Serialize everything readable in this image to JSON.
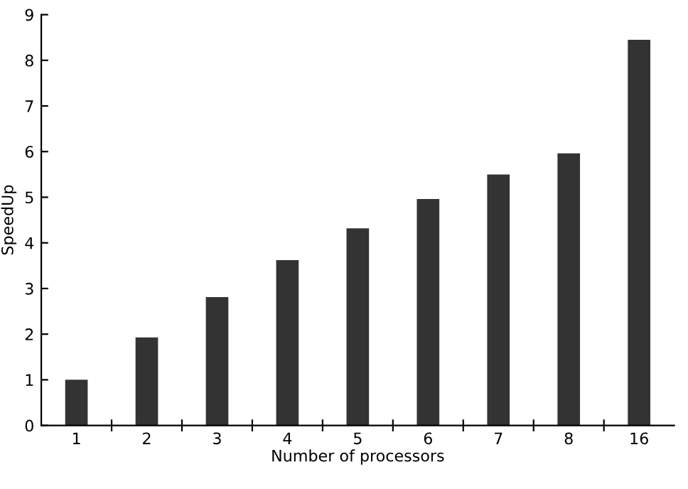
{
  "chart_data": {
    "type": "bar",
    "xlabel": "Number of processors",
    "ylabel": "SpeedUp",
    "categories": [
      "1",
      "2",
      "3",
      "4",
      "5",
      "6",
      "7",
      "8",
      "16"
    ],
    "values": [
      1.0,
      1.93,
      2.81,
      3.62,
      4.32,
      4.96,
      5.5,
      5.96,
      8.45
    ],
    "color": "#333333",
    "ylim": [
      0,
      9
    ],
    "yticks": [
      0,
      1,
      2,
      3,
      4,
      5,
      6,
      7,
      8,
      9
    ],
    "grid": false
  }
}
